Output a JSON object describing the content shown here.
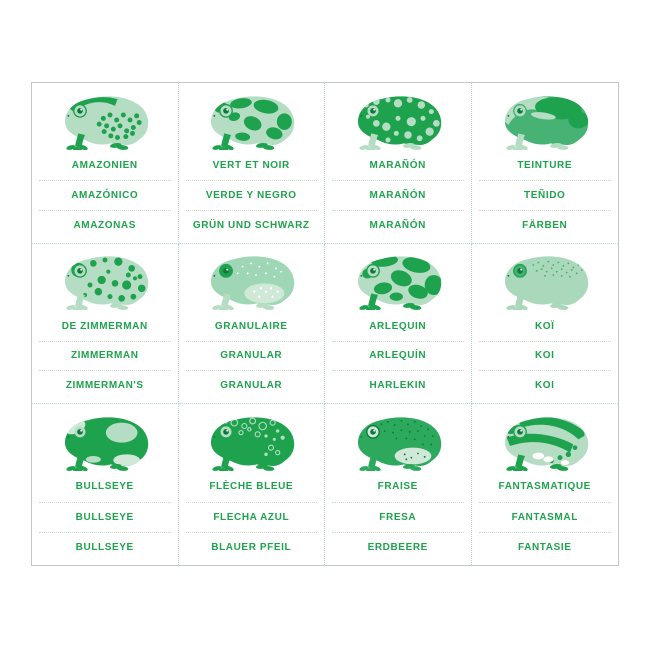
{
  "sheet": {
    "description": "Frog flashcard sheet, 12 cards, names in French / Spanish / German",
    "rows": 3,
    "columns": 4
  },
  "colors": {
    "text_green": "#1fa24e",
    "frog_dark_green": "#1fa24e",
    "frog_mid_green": "#46b274",
    "frog_light_green": "#b5ddc3",
    "frog_pale_green": "#cfe8d8",
    "grid_dotted_line": "#b7d9c3",
    "label_separator": "#ccd8cf",
    "outer_border": "#c3c7c3",
    "background": "#ffffff"
  },
  "cards": [
    {
      "id": "amazonien",
      "frog_variant": "bumps",
      "lines": [
        "AMAZONIEN",
        "AMAZÓNICO",
        "AMAZONAS"
      ]
    },
    {
      "id": "vert-et-noir",
      "frog_variant": "blotches",
      "lines": [
        "VERT ET NOIR",
        "VERDE Y NEGRO",
        "GRÜN UND SCHWARZ"
      ]
    },
    {
      "id": "maranon",
      "frog_variant": "polka",
      "lines": [
        "MARAÑÓN",
        "MARAÑÓN",
        "MARAÑÓN"
      ]
    },
    {
      "id": "teinture",
      "frog_variant": "twotone",
      "lines": [
        "TEINTURE",
        "TEÑIDO",
        "FÄRBEN"
      ]
    },
    {
      "id": "de-zimmerman",
      "frog_variant": "spots",
      "lines": [
        "DE ZIMMERMAN",
        "ZIMMERMAN",
        "ZIMMERMAN'S"
      ]
    },
    {
      "id": "granulaire",
      "frog_variant": "granular",
      "lines": [
        "GRANULAIRE",
        "GRANULAR",
        "GRANULAR"
      ]
    },
    {
      "id": "arlequin",
      "frog_variant": "camo",
      "lines": [
        "ARLEQUIN",
        "ARLEQUÍN",
        "HARLEKIN"
      ]
    },
    {
      "id": "koi",
      "frog_variant": "speckle",
      "lines": [
        "KOÏ",
        "KOI",
        "KOI"
      ]
    },
    {
      "id": "bullseye",
      "frog_variant": "bullseye",
      "lines": [
        "BULLSEYE",
        "BULLSEYE",
        "BULLSEYE"
      ]
    },
    {
      "id": "fleche-bleue",
      "frog_variant": "bubbles",
      "lines": [
        "FLÈCHE BLEUE",
        "FLECHA AZUL",
        "BLAUER PFEIL"
      ]
    },
    {
      "id": "fraise",
      "frog_variant": "strawberry",
      "lines": [
        "FRAISE",
        "FRESA",
        "ERDBEERE"
      ]
    },
    {
      "id": "fantasmatique",
      "frog_variant": "stripes",
      "lines": [
        "FANTASMATIQUE",
        "FANTASMAL",
        "FANTASIE"
      ]
    }
  ]
}
